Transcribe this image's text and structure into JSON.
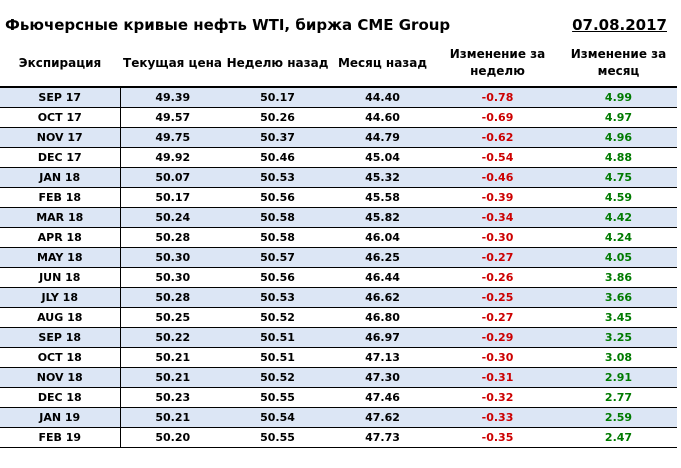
{
  "header": {
    "title": "Фьючерсные кривые нефть WTI, биржа CME Group",
    "date": "07.08.2017"
  },
  "table": {
    "columns": [
      "Экспирация",
      "Текущая цена",
      "Неделю назад",
      "Месяц назад",
      "Изменение за неделю",
      "Изменение за месяц"
    ],
    "rows": [
      [
        "SEP 17",
        "49.39",
        "50.17",
        "44.40",
        "-0.78",
        "4.99"
      ],
      [
        "OCT 17",
        "49.57",
        "50.26",
        "44.60",
        "-0.69",
        "4.97"
      ],
      [
        "NOV 17",
        "49.75",
        "50.37",
        "44.79",
        "-0.62",
        "4.96"
      ],
      [
        "DEC 17",
        "49.92",
        "50.46",
        "45.04",
        "-0.54",
        "4.88"
      ],
      [
        "JAN 18",
        "50.07",
        "50.53",
        "45.32",
        "-0.46",
        "4.75"
      ],
      [
        "FEB 18",
        "50.17",
        "50.56",
        "45.58",
        "-0.39",
        "4.59"
      ],
      [
        "MAR 18",
        "50.24",
        "50.58",
        "45.82",
        "-0.34",
        "4.42"
      ],
      [
        "APR 18",
        "50.28",
        "50.58",
        "46.04",
        "-0.30",
        "4.24"
      ],
      [
        "MAY 18",
        "50.30",
        "50.57",
        "46.25",
        "-0.27",
        "4.05"
      ],
      [
        "JUN 18",
        "50.30",
        "50.56",
        "46.44",
        "-0.26",
        "3.86"
      ],
      [
        "JLY 18",
        "50.28",
        "50.53",
        "46.62",
        "-0.25",
        "3.66"
      ],
      [
        "AUG 18",
        "50.25",
        "50.52",
        "46.80",
        "-0.27",
        "3.45"
      ],
      [
        "SEP 18",
        "50.22",
        "50.51",
        "46.97",
        "-0.29",
        "3.25"
      ],
      [
        "OCT 18",
        "50.21",
        "50.51",
        "47.13",
        "-0.30",
        "3.08"
      ],
      [
        "NOV 18",
        "50.21",
        "50.52",
        "47.30",
        "-0.31",
        "2.91"
      ],
      [
        "DEC 18",
        "50.23",
        "50.55",
        "47.46",
        "-0.32",
        "2.77"
      ],
      [
        "JAN 19",
        "50.21",
        "50.54",
        "47.62",
        "-0.33",
        "2.59"
      ],
      [
        "FEB 19",
        "50.20",
        "50.55",
        "47.73",
        "-0.35",
        "2.47"
      ]
    ]
  },
  "colors": {
    "negative": "#cc0000",
    "positive": "#007a00",
    "band": "#dce6f5"
  }
}
